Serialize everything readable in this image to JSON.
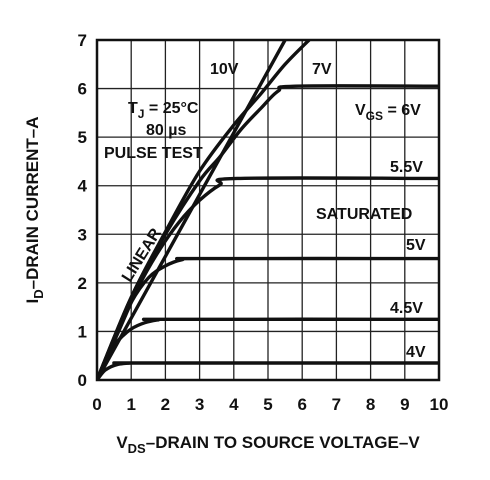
{
  "chart_data": {
    "type": "line",
    "xlabel": {
      "main": "V",
      "sub": "DS",
      "rest": "–DRAIN TO SOURCE VOLTAGE–V"
    },
    "ylabel": {
      "main": "I",
      "sub": "D",
      "rest": "–DRAIN CURRENT–A"
    },
    "xlim": [
      0,
      10
    ],
    "ylim": [
      0,
      7
    ],
    "x_ticks": [
      "0",
      "1",
      "2",
      "3",
      "4",
      "5",
      "6",
      "7",
      "8",
      "9",
      "10"
    ],
    "y_ticks": [
      "0",
      "1",
      "2",
      "3",
      "4",
      "5",
      "6",
      "7"
    ],
    "grid": true,
    "series": [
      {
        "name": "4V",
        "x": [
          0,
          0.2,
          0.4,
          0.6,
          0.8,
          1.0,
          1.2,
          10
        ],
        "y": [
          0,
          0.18,
          0.27,
          0.32,
          0.34,
          0.35,
          0.35,
          0.35
        ]
      },
      {
        "name": "4.5V",
        "x": [
          0,
          0.3,
          0.6,
          1.0,
          1.4,
          1.8,
          2.0,
          10
        ],
        "y": [
          0,
          0.5,
          0.8,
          1.05,
          1.18,
          1.24,
          1.25,
          1.25
        ]
      },
      {
        "name": "5V",
        "x": [
          0,
          0.5,
          1.0,
          1.5,
          2.0,
          2.5,
          3.0,
          10
        ],
        "y": [
          0,
          0.85,
          1.6,
          2.1,
          2.35,
          2.48,
          2.5,
          2.5
        ]
      },
      {
        "name": "5.5V",
        "x": [
          0,
          0.6,
          1.2,
          1.8,
          2.4,
          3.0,
          3.6,
          4.1,
          10
        ],
        "y": [
          0,
          0.95,
          1.9,
          2.65,
          3.25,
          3.7,
          4.02,
          4.15,
          4.15
        ]
      },
      {
        "name": "6V",
        "x": [
          0,
          1.0,
          2.0,
          3.0,
          3.6,
          4.2,
          4.8,
          5.3,
          5.8,
          10
        ],
        "y": [
          0,
          1.7,
          3.0,
          4.1,
          4.6,
          5.15,
          5.6,
          5.95,
          6.05,
          6.05
        ]
      },
      {
        "name": "7V",
        "x": [
          0,
          1.0,
          2.0,
          3.0,
          4.0,
          4.8,
          5.5,
          6.2
        ],
        "y": [
          0,
          1.7,
          3.05,
          4.3,
          5.25,
          5.9,
          6.5,
          7.0
        ]
      },
      {
        "name": "10V",
        "x": [
          0,
          5.5
        ],
        "y": [
          0,
          7.0
        ]
      }
    ],
    "annotations": {
      "tj_main": "T",
      "tj_sub": "J",
      "tj_rest": " = 25°C",
      "pulse_width": "80 µs",
      "pulse_test": "PULSE TEST",
      "label_10v": "10V",
      "label_7v": "7V",
      "vgs_main": "V",
      "vgs_sub": "GS",
      "vgs_rest": " = 6V",
      "label_55v": "5.5V",
      "saturated": "SATURATED",
      "label_5v": "5V",
      "label_45v": "4.5V",
      "label_4v": "4V",
      "linear": "LINEAR"
    }
  }
}
